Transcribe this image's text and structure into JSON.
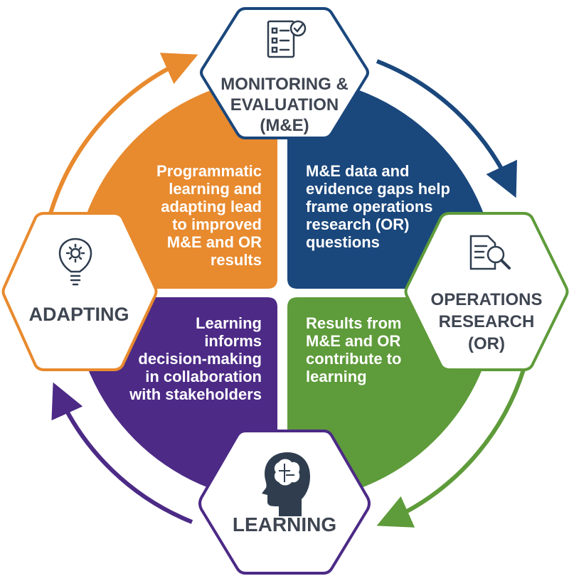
{
  "colors": {
    "orange": "#e88a2e",
    "blue": "#1a477c",
    "green": "#5e9b3a",
    "purple": "#4c2a86",
    "hex_text": "#3f4652",
    "icon": "#2f3d4f"
  },
  "stages": {
    "me": {
      "label": "MONITORING &\nEVALUATION\n(M&E)",
      "icon": "checklist-icon",
      "color": "blue"
    },
    "or": {
      "label": "OPERATIONS\nRESEARCH\n(OR)",
      "icon": "document-search-icon",
      "color": "green"
    },
    "learning": {
      "label": "LEARNING",
      "icon": "head-brain-icon",
      "color": "purple"
    },
    "adapting": {
      "label": "ADAPTING",
      "icon": "lightbulb-gear-icon",
      "color": "orange"
    }
  },
  "quadrants": {
    "top_left": "Programmatic\nlearning and\nadapting lead\nto improved\nM&E and OR\nresults",
    "top_right": "M&E data and\nevidence gaps help\nframe operations\nresearch (OR)\nquestions",
    "bottom_right": "Results from\nM&E and OR\ncontribute to\nlearning",
    "bottom_left": "Learning\ninforms\ndecision-making\nin collaboration\nwith stakeholders"
  },
  "cycle_arrows": [
    "adapting-to-me",
    "me-to-or",
    "or-to-learning",
    "learning-to-adapting"
  ]
}
